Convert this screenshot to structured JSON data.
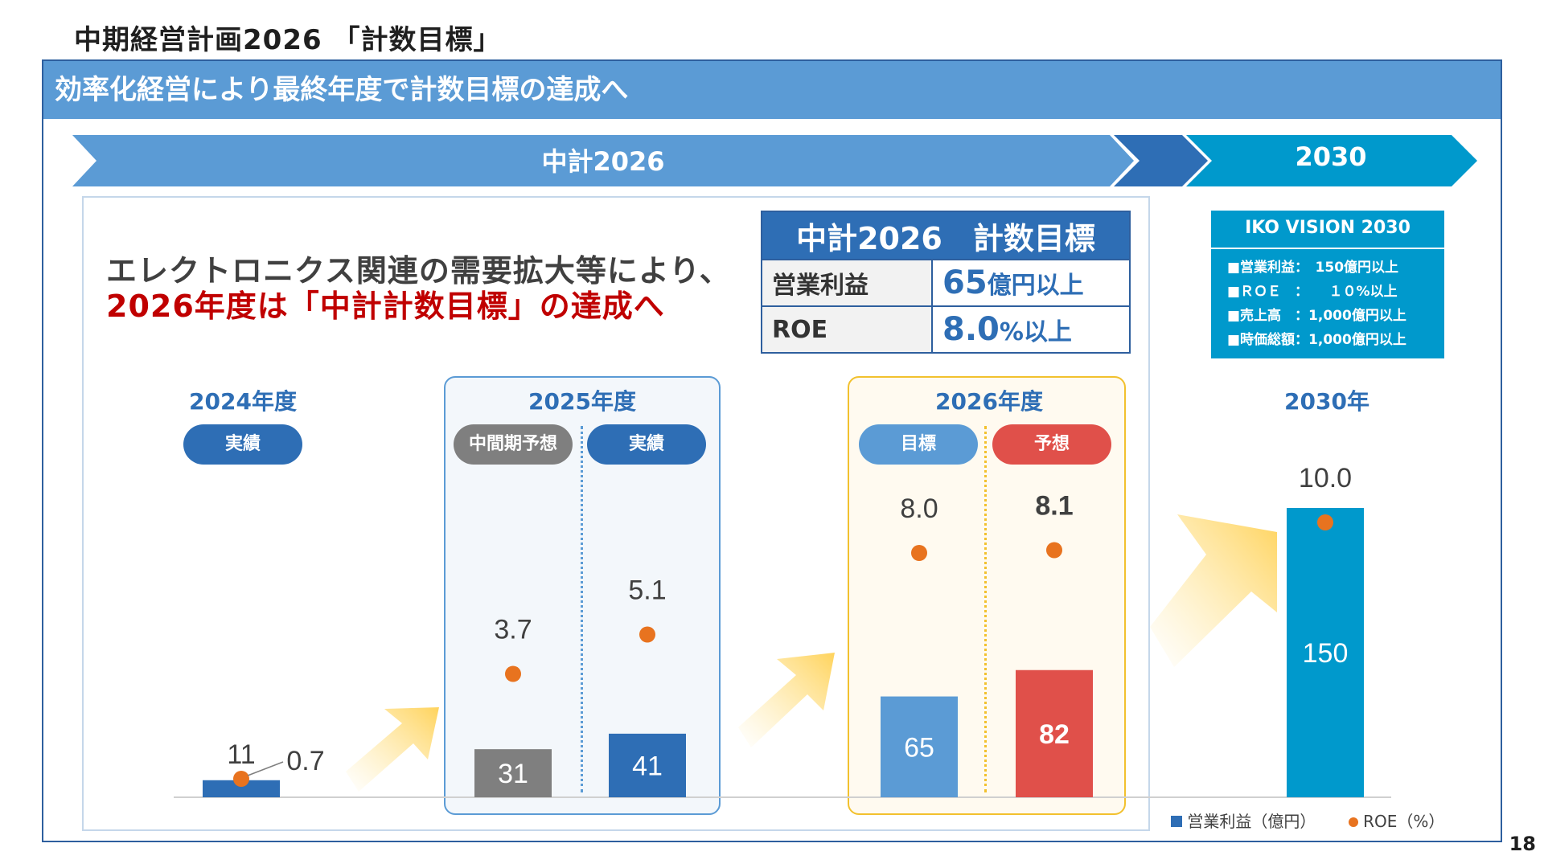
{
  "page_title": "中期経営計画2026 「計数目標」",
  "banner": "効率化経営により最終年度で計数目標の達成へ",
  "arrows": {
    "plan": "中計2026",
    "goal": "2030"
  },
  "message": {
    "line1": "エレクトロニクス関連の需要拡大等により、",
    "line2": "2026年度は「中計計数目標」の達成へ"
  },
  "targets_table": {
    "header": "中計2026　計数目標",
    "rows": [
      {
        "label": "営業利益",
        "value": "65",
        "unit": "億円以上"
      },
      {
        "label": "ROE",
        "value": "8.0",
        "unit": "%以上"
      }
    ]
  },
  "vision": {
    "title": "IKO VISION 2030",
    "items": [
      "■営業利益：　150億円以上",
      "■ＲＯＥ　：　　１０%以上",
      "■売上高　：1,000億円以上",
      "■時価総額：1,000億円以上"
    ]
  },
  "years": {
    "y2024": "2024年度",
    "y2025": "2025年度",
    "y2026": "2026年度",
    "y2030": "2030年"
  },
  "pills": {
    "actual_2024": "実績",
    "interim_2025": "中間期予想",
    "actual_2025": "実績",
    "target_2026": "目標",
    "forecast_2026": "予想"
  },
  "chart_data": {
    "type": "bar",
    "categories": [
      "2024年度 実績",
      "2025年度 中間期予想",
      "2025年度 実績",
      "2026年度 目標",
      "2026年度 予想",
      "2030年"
    ],
    "series": [
      {
        "name": "営業利益（億円）",
        "values": [
          11,
          31,
          41,
          65,
          82,
          150
        ]
      },
      {
        "name": "ROE（%）",
        "values": [
          0.7,
          3.7,
          5.1,
          8.0,
          8.1,
          10.0
        ]
      }
    ],
    "labels": {
      "profit": [
        "11",
        "31",
        "41",
        "65",
        "82",
        "150"
      ],
      "roe": [
        "0.7",
        "3.7",
        "5.1",
        "8.0",
        "8.1",
        "10.0"
      ]
    },
    "colors": {
      "bars": [
        "#2e6eb5",
        "#7f7f7f",
        "#2e6eb5",
        "#5b9bd5",
        "#e0504a",
        "#0099cc"
      ],
      "roe_dot": "#e8731f"
    }
  },
  "legend": {
    "profit": "営業利益（億円）",
    "roe": "ROE（%）"
  },
  "page_number": "18"
}
